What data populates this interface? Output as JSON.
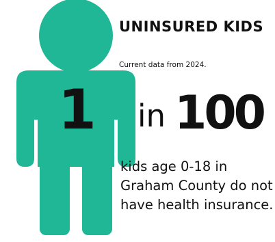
{
  "heading": "UNINSURED KIDS",
  "subtitle": "Current data from 2024.",
  "stat": {
    "numerator": "1",
    "joiner": "in",
    "denominator": "100"
  },
  "description": "kids age 0-18 in Graham County do not have health insurance.",
  "colors": {
    "figure": "#1fb796",
    "text": "#111111",
    "background": "#ffffff"
  },
  "icons": {
    "figure": "child-figure-icon"
  }
}
